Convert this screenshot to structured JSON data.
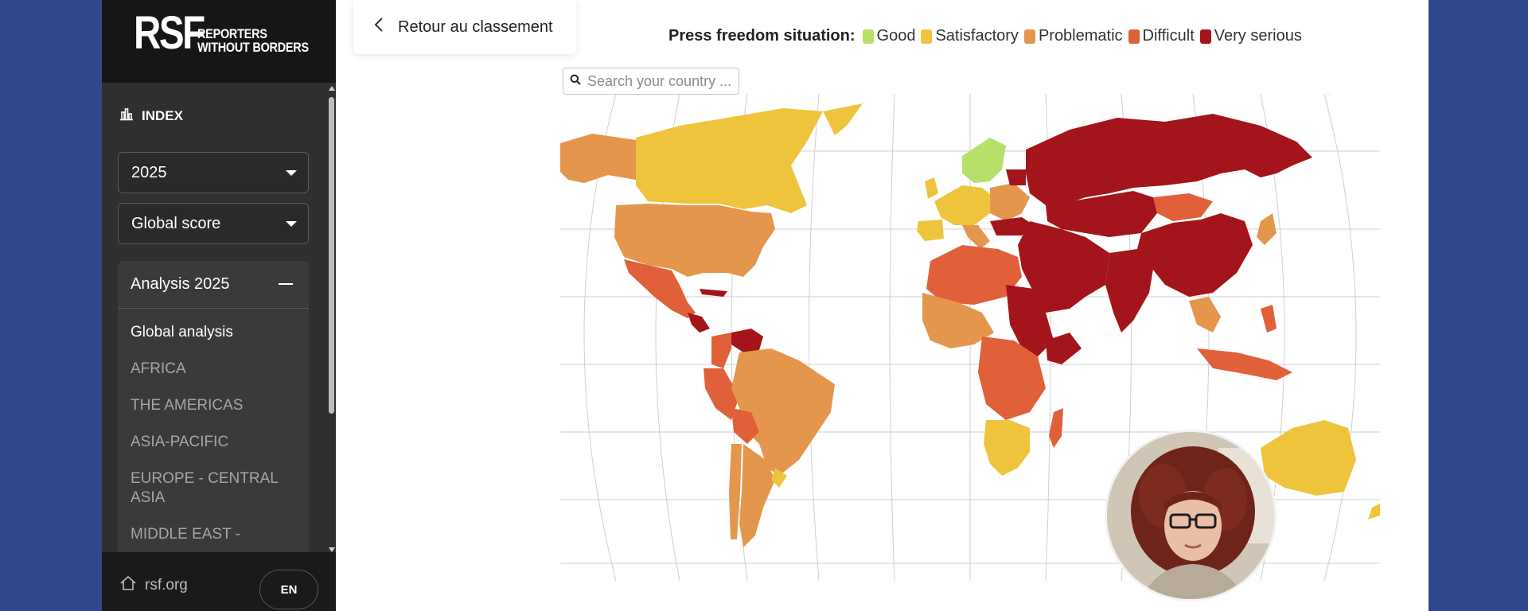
{
  "sidebar": {
    "logo": {
      "mark": "RSF",
      "line1": "REPORTERS",
      "line2": "WITHOUT BORDERS"
    },
    "index_label": "INDEX",
    "year_select": {
      "value": "2025"
    },
    "score_select": {
      "value": "Global score"
    },
    "analysis": {
      "title": "Analysis 2025",
      "items": [
        {
          "label": "Global analysis"
        },
        {
          "label": "AFRICA"
        },
        {
          "label": "THE AMERICAS"
        },
        {
          "label": "ASIA-PACIFIC"
        },
        {
          "label": "EUROPE - CENTRAL ASIA"
        },
        {
          "label": "MIDDLE EAST -"
        }
      ]
    },
    "footer": {
      "home_label": "rsf.org",
      "lang": "EN"
    }
  },
  "main": {
    "back_label": "Retour au classement",
    "legend": {
      "title": "Press freedom situation:",
      "items": [
        {
          "label": "Good",
          "color": "#b7e06a"
        },
        {
          "label": "Satisfactory",
          "color": "#eec43d"
        },
        {
          "label": "Problematic",
          "color": "#e4964d"
        },
        {
          "label": "Difficult",
          "color": "#e0603a"
        },
        {
          "label": "Very serious",
          "color": "#a3151a"
        }
      ]
    },
    "search": {
      "placeholder": "Search your country ..."
    }
  },
  "colors": {
    "page_bg": "#2e4a8c",
    "sidebar_bg": "#2f2f2f",
    "logo_bg": "#161616",
    "good": "#b7e06a",
    "satisfactory": "#eec43d",
    "problematic": "#e4964d",
    "difficult": "#e0603a",
    "very_serious": "#a3151a"
  }
}
